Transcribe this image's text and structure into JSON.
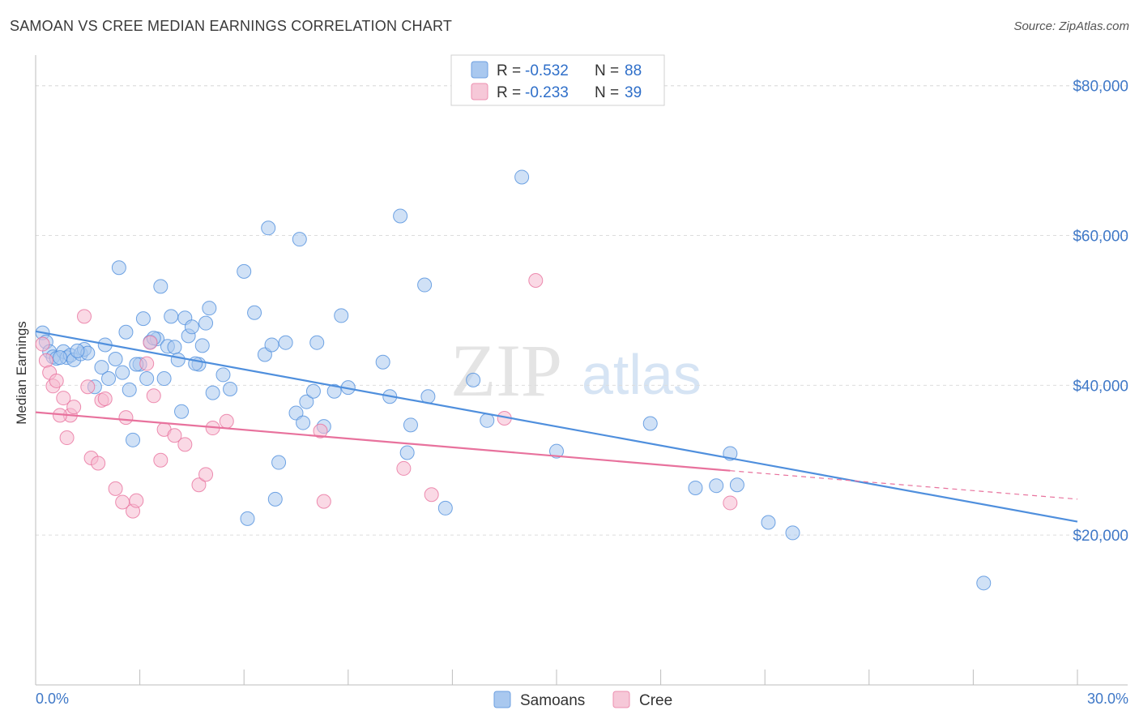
{
  "title": "SAMOAN VS CREE MEDIAN EARNINGS CORRELATION CHART",
  "source": "Source: ZipAtlas.com",
  "watermark": {
    "zip": "ZIP",
    "atlas": "atlas"
  },
  "legend": {
    "rows": [
      {
        "r_label": "R = ",
        "r_value": "-0.532",
        "n_label": "N = ",
        "n_value": "88",
        "color": "#a9c8ef"
      },
      {
        "r_label": "R = ",
        "r_value": "-0.233",
        "n_label": "N = ",
        "n_value": "39",
        "color": "#f6b9cf"
      }
    ]
  },
  "chart_data": {
    "type": "scatter",
    "xlabel": "",
    "ylabel": "Median Earnings",
    "xlim": [
      0,
      30
    ],
    "ylim": [
      0,
      83000
    ],
    "x_tick_labels": [
      "0.0%",
      "30.0%"
    ],
    "y_ticks": [
      20000,
      40000,
      60000,
      80000
    ],
    "y_tick_labels": [
      "$20,000",
      "$40,000",
      "$60,000",
      "$80,000"
    ],
    "grid": true,
    "legend_position": "top-center",
    "series": [
      {
        "name": "Samoans",
        "color": "#4f8fdd",
        "fill": "#a9c8ef",
        "trend": {
          "x0": 0,
          "y0": 47200,
          "x1": 30,
          "y1": 21800
        },
        "points": [
          [
            0.2,
            47000
          ],
          [
            0.3,
            45800
          ],
          [
            0.4,
            44500
          ],
          [
            0.5,
            43800
          ],
          [
            0.6,
            43600
          ],
          [
            0.8,
            44500
          ],
          [
            0.9,
            43700
          ],
          [
            1.0,
            44000
          ],
          [
            1.1,
            43400
          ],
          [
            1.3,
            44200
          ],
          [
            1.4,
            44800
          ],
          [
            1.5,
            44300
          ],
          [
            1.7,
            39800
          ],
          [
            1.9,
            42400
          ],
          [
            2.0,
            45400
          ],
          [
            2.1,
            40900
          ],
          [
            2.3,
            43500
          ],
          [
            2.4,
            55700
          ],
          [
            2.5,
            41700
          ],
          [
            2.6,
            47100
          ],
          [
            2.7,
            39400
          ],
          [
            2.8,
            32700
          ],
          [
            3.0,
            42800
          ],
          [
            3.1,
            48900
          ],
          [
            3.2,
            40900
          ],
          [
            3.3,
            45800
          ],
          [
            3.5,
            46200
          ],
          [
            3.6,
            53200
          ],
          [
            3.7,
            40900
          ],
          [
            3.8,
            45200
          ],
          [
            3.9,
            49200
          ],
          [
            4.0,
            45100
          ],
          [
            4.1,
            43400
          ],
          [
            4.2,
            36500
          ],
          [
            4.3,
            49000
          ],
          [
            4.4,
            46600
          ],
          [
            4.5,
            47800
          ],
          [
            4.7,
            42800
          ],
          [
            4.8,
            45300
          ],
          [
            4.9,
            48300
          ],
          [
            5.0,
            50300
          ],
          [
            5.1,
            39000
          ],
          [
            5.4,
            41400
          ],
          [
            5.6,
            39500
          ],
          [
            6.0,
            55200
          ],
          [
            6.1,
            22200
          ],
          [
            6.3,
            49700
          ],
          [
            6.6,
            44100
          ],
          [
            6.7,
            61000
          ],
          [
            6.8,
            45400
          ],
          [
            6.9,
            24800
          ],
          [
            7.0,
            29700
          ],
          [
            7.2,
            45700
          ],
          [
            7.5,
            36300
          ],
          [
            7.6,
            59500
          ],
          [
            7.7,
            35000
          ],
          [
            7.8,
            37800
          ],
          [
            8.0,
            39200
          ],
          [
            8.1,
            45700
          ],
          [
            8.3,
            34500
          ],
          [
            8.6,
            39200
          ],
          [
            8.8,
            49300
          ],
          [
            9.0,
            39700
          ],
          [
            10.0,
            43100
          ],
          [
            10.2,
            38500
          ],
          [
            10.5,
            62600
          ],
          [
            10.7,
            31000
          ],
          [
            10.8,
            34700
          ],
          [
            11.2,
            53400
          ],
          [
            11.3,
            38500
          ],
          [
            11.8,
            23600
          ],
          [
            12.6,
            40700
          ],
          [
            13.0,
            35300
          ],
          [
            14.0,
            67800
          ],
          [
            15.0,
            31200
          ],
          [
            17.7,
            34900
          ],
          [
            19.0,
            26300
          ],
          [
            19.6,
            26600
          ],
          [
            20.2,
            26700
          ],
          [
            20.0,
            30900
          ],
          [
            21.1,
            21700
          ],
          [
            21.8,
            20300
          ],
          [
            27.3,
            13600
          ],
          [
            2.9,
            42800
          ],
          [
            1.2,
            44600
          ],
          [
            3.4,
            46300
          ],
          [
            4.6,
            42900
          ],
          [
            0.7,
            43700
          ]
        ]
      },
      {
        "name": "Cree",
        "color": "#e8729d",
        "fill": "#f6b9cf",
        "trend": {
          "x0": 0,
          "y0": 36400,
          "x1": 20,
          "y1": 28600,
          "dash_x1": 30,
          "dash_y1": 24800
        },
        "points": [
          [
            0.2,
            45500
          ],
          [
            0.3,
            43300
          ],
          [
            0.4,
            41700
          ],
          [
            0.5,
            39900
          ],
          [
            0.6,
            40600
          ],
          [
            0.8,
            38300
          ],
          [
            0.9,
            33000
          ],
          [
            1.0,
            36000
          ],
          [
            1.1,
            37100
          ],
          [
            1.4,
            49200
          ],
          [
            1.5,
            39800
          ],
          [
            1.6,
            30300
          ],
          [
            1.8,
            29600
          ],
          [
            1.9,
            38000
          ],
          [
            2.0,
            38200
          ],
          [
            2.3,
            26200
          ],
          [
            2.5,
            24400
          ],
          [
            2.6,
            35700
          ],
          [
            2.8,
            23200
          ],
          [
            2.9,
            24600
          ],
          [
            3.2,
            42900
          ],
          [
            3.3,
            45700
          ],
          [
            3.4,
            38600
          ],
          [
            3.6,
            30000
          ],
          [
            3.7,
            34100
          ],
          [
            4.0,
            33300
          ],
          [
            4.3,
            32100
          ],
          [
            4.7,
            26700
          ],
          [
            4.9,
            28100
          ],
          [
            5.1,
            34300
          ],
          [
            5.5,
            35200
          ],
          [
            8.2,
            33900
          ],
          [
            8.3,
            24500
          ],
          [
            10.6,
            28900
          ],
          [
            11.4,
            25400
          ],
          [
            13.5,
            35600
          ],
          [
            14.4,
            54000
          ],
          [
            20.0,
            24300
          ],
          [
            0.7,
            36000
          ]
        ]
      }
    ]
  }
}
